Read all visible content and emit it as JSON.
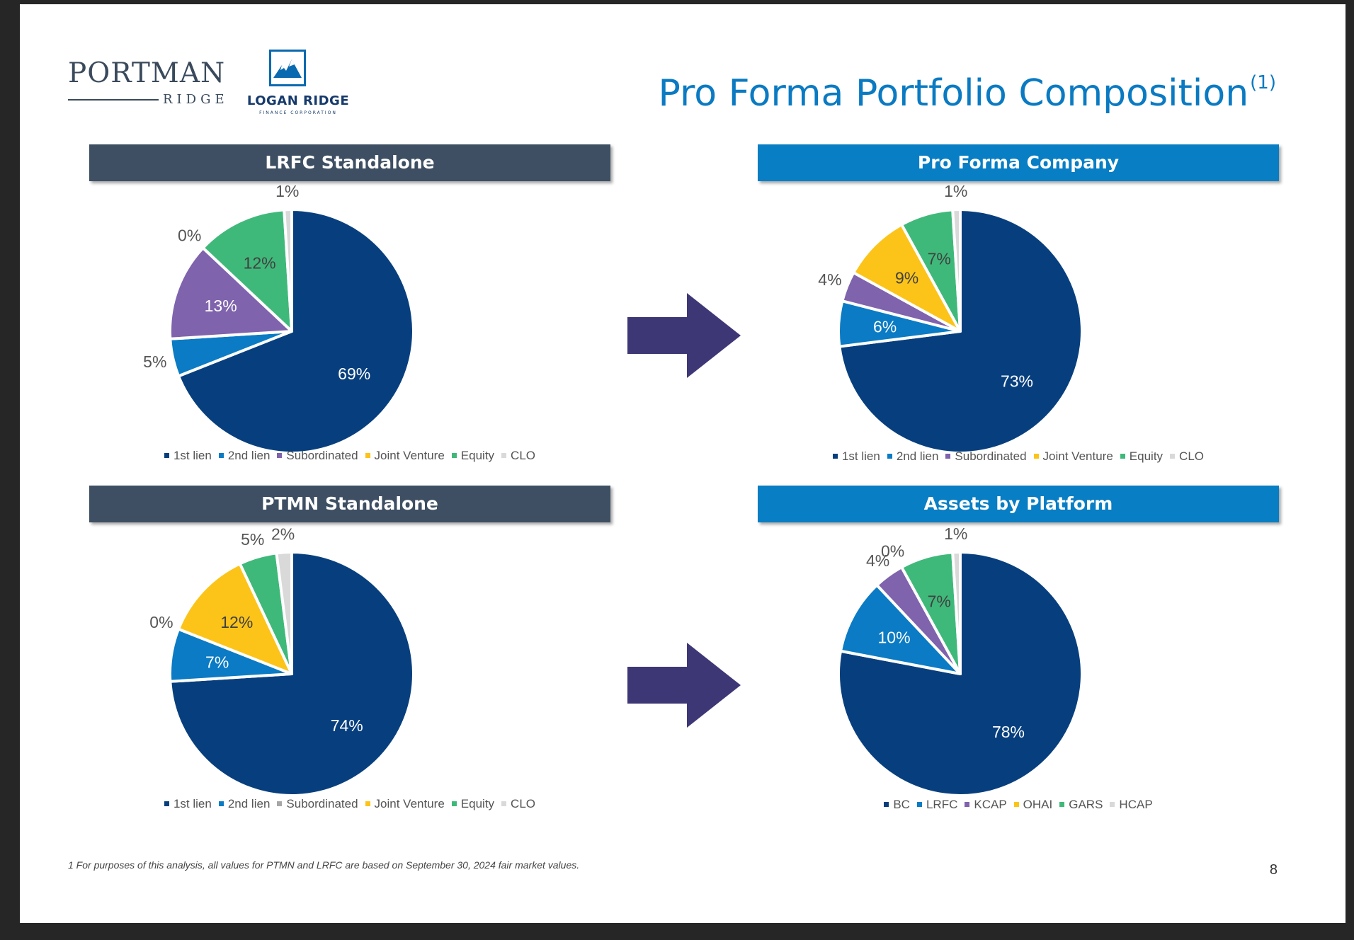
{
  "title": "Pro Forma Portfolio Composition",
  "title_superscript": "(1)",
  "logos": {
    "portman": {
      "word": "PORTMAN",
      "sub": "RIDGE"
    },
    "logan": {
      "name": "LOGAN RIDGE",
      "corp": "FINANCE CORPORATION"
    }
  },
  "footnote": "1 For purposes of this analysis, all values for PTMN and LRFC are based on September 30, 2024 fair market values.",
  "page_number": "8",
  "chart_data": [
    {
      "type": "pie",
      "title": "LRFC Standalone",
      "categories": [
        "1st lien",
        "2nd lien",
        "Subordinated",
        "Joint Venture",
        "Equity",
        "CLO"
      ],
      "values": [
        69,
        5,
        13,
        0,
        12,
        1
      ],
      "labels": [
        "69%",
        "5%",
        "13%",
        "0%",
        "12%",
        "1%"
      ],
      "colors": [
        "#073f7e",
        "#0a7bc4",
        "#7f63ad",
        "#fcc419",
        "#3fb97a",
        "#d9d9d9"
      ],
      "legend": "bottom"
    },
    {
      "type": "pie",
      "title": "Pro Forma Company",
      "categories": [
        "1st lien",
        "2nd lien",
        "Subordinated",
        "Joint Venture",
        "Equity",
        "CLO"
      ],
      "values": [
        73,
        6,
        4,
        9,
        7,
        1
      ],
      "labels": [
        "73%",
        "6%",
        "4%",
        "9%",
        "7%",
        "1%"
      ],
      "colors": [
        "#073f7e",
        "#0a7bc4",
        "#7f63ad",
        "#fcc419",
        "#3fb97a",
        "#d9d9d9"
      ],
      "legend": "bottom"
    },
    {
      "type": "pie",
      "title": "PTMN Standalone",
      "categories": [
        "1st lien",
        "2nd lien",
        "Subordinated",
        "Joint Venture",
        "Equity",
        "CLO"
      ],
      "values": [
        74,
        7,
        0,
        12,
        5,
        2
      ],
      "labels": [
        "74%",
        "7%",
        "0%",
        "12%",
        "5%",
        "2%"
      ],
      "colors": [
        "#073f7e",
        "#0a7bc4",
        "#a6a6a6",
        "#fcc419",
        "#3fb97a",
        "#d9d9d9"
      ],
      "legend": "bottom"
    },
    {
      "type": "pie",
      "title": "Assets by Platform",
      "categories": [
        "BC",
        "LRFC",
        "KCAP",
        "OHAI",
        "GARS",
        "HCAP"
      ],
      "values": [
        78,
        10,
        4,
        0,
        7,
        1
      ],
      "labels": [
        "78%",
        "10%",
        "4%",
        "0%",
        "7%",
        "1%"
      ],
      "colors": [
        "#073f7e",
        "#0a7bc4",
        "#7f63ad",
        "#fcc419",
        "#3fb97a",
        "#d9d9d9"
      ],
      "legend": "bottom"
    }
  ]
}
